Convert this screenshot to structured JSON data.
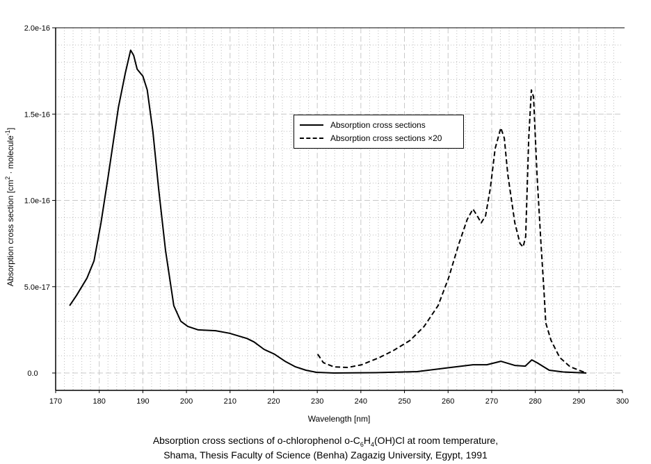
{
  "chart_data": {
    "type": "line",
    "title": "",
    "xlabel": "Wavelength [nm]",
    "ylabel_parts": [
      "Absorption cross section [cm",
      "2",
      " · molecule",
      "-1",
      "]"
    ],
    "xlim": [
      170,
      300
    ],
    "ylim": [
      -1e-17,
      2e-16
    ],
    "x_ticks": [
      170,
      180,
      190,
      200,
      210,
      220,
      230,
      240,
      250,
      260,
      270,
      280,
      290,
      300
    ],
    "x_tick_labels": [
      "170",
      "180",
      "190",
      "200",
      "210",
      "220",
      "230",
      "240",
      "250",
      "260",
      "270",
      "280",
      "290",
      "300"
    ],
    "y_ticks": [
      0,
      5e-17,
      1e-16,
      1.5e-16,
      2e-16
    ],
    "y_tick_labels": [
      "0.0",
      "5.0e-17",
      "1.0e-16",
      "1.5e-16",
      "2.0e-16"
    ],
    "grid": true,
    "legend_placement": "center-right",
    "legend": [
      "Absorption cross sections",
      "Absorption cross sections ×20"
    ],
    "series": [
      {
        "name": "Absorption cross sections",
        "style": "solid",
        "x": [
          173.2,
          174.8,
          177.2,
          178.8,
          180.4,
          182,
          184.4,
          186,
          187.2,
          187.9,
          188.7,
          190,
          191,
          192.3,
          193.6,
          195.2,
          197.1,
          198.7,
          200.3,
          202.7,
          206.7,
          209.9,
          213.9,
          215.5,
          217.8,
          220.2,
          222.6,
          225,
          227.4,
          229.8,
          233.8,
          243.4,
          252.9,
          259.3,
          265.7,
          268.9,
          272.1,
          275.3,
          277.7,
          279.2,
          280.4,
          283.2,
          286.4,
          291.7
        ],
        "y": [
          3.9e-17,
          4.5e-17,
          5.5e-17,
          6.5e-17,
          8.7e-17,
          1.13e-16,
          1.54e-16,
          1.74e-16,
          1.87e-16,
          1.84e-16,
          1.76e-16,
          1.72e-16,
          1.64e-16,
          1.4e-16,
          1.07e-16,
          7.1e-17,
          3.9e-17,
          3e-17,
          2.7e-17,
          2.5e-17,
          2.45e-17,
          2.3e-17,
          2e-17,
          1.8e-17,
          1.37e-17,
          1.09e-17,
          6.8e-18,
          3.6e-18,
          1.6e-18,
          4e-19,
          0,
          2e-19,
          8e-19,
          2.8e-18,
          4.8e-18,
          4.8e-18,
          6.8e-18,
          4.4e-18,
          4e-18,
          7.6e-18,
          6e-18,
          1.6e-18,
          6e-19,
          0
        ]
      },
      {
        "name": "Absorption cross sections ×20",
        "style": "dashed",
        "x": [
          230.1,
          231.4,
          233.8,
          237,
          240.2,
          244.2,
          247.4,
          251.3,
          254.5,
          257.7,
          260.1,
          262.5,
          264.4,
          265.7,
          266.7,
          267.6,
          268.6,
          269.7,
          270.8,
          272.1,
          272.9,
          273.7,
          275.3,
          276.5,
          277.2,
          277.8,
          278.5,
          279.1,
          279.6,
          280.4,
          281.3,
          282,
          282.4,
          283.6,
          285.6,
          288,
          291.7
        ],
        "y": [
          1.09e-17,
          6e-18,
          3.6e-18,
          3.2e-18,
          4.8e-18,
          8.9e-18,
          1.29e-17,
          1.89e-17,
          2.7e-17,
          3.9e-17,
          5.5e-17,
          7.5e-17,
          8.9e-17,
          9.5e-17,
          9.1e-17,
          8.7e-17,
          9.1e-17,
          1.07e-16,
          1.3e-16,
          1.42e-16,
          1.36e-16,
          1.15e-16,
          8.7e-17,
          7.5e-17,
          7.3e-17,
          7.9e-17,
          1.36e-16,
          1.64e-16,
          1.6e-16,
          1.15e-16,
          7.5e-17,
          4.7e-17,
          2.9e-17,
          1.9e-17,
          9e-18,
          3.6e-18,
          0
        ]
      }
    ]
  },
  "caption": {
    "line1_a": "Absorption cross sections of o-chlorophenol o-C",
    "line1_sub1": "6",
    "line1_b": "H",
    "line1_sub2": "4",
    "line1_c": "(OH)Cl at room temperature,",
    "line2": "Shama, Thesis Faculty of Science (Benha) Zagazig University, Egypt, 1991"
  }
}
